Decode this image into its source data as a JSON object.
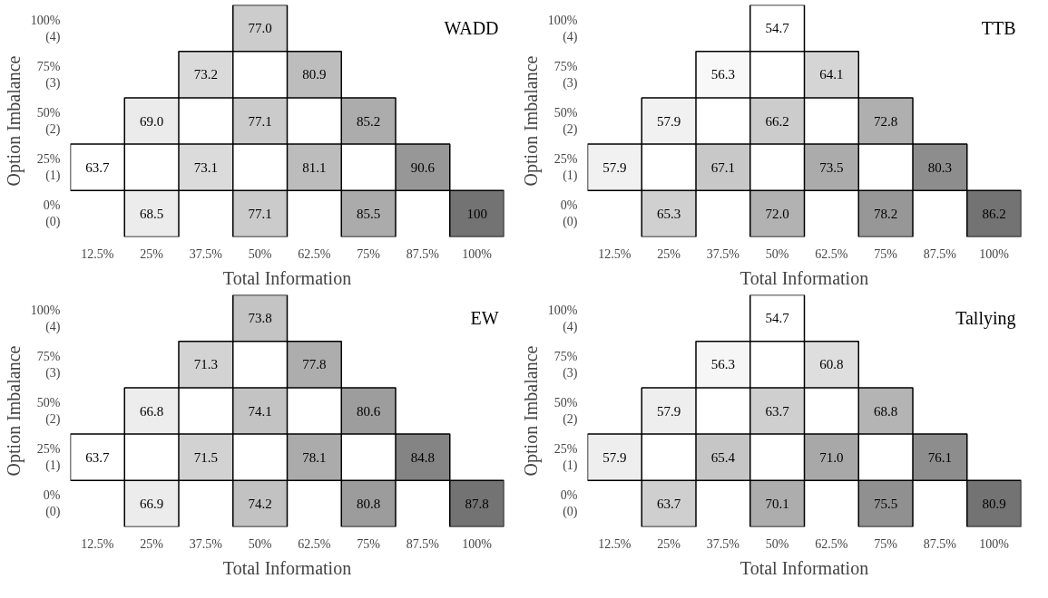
{
  "chart_data": [
    {
      "type": "heatmap",
      "title": "WADD",
      "xlabel": "Total Information",
      "ylabel": "Option Imbalance",
      "categories": [
        "12.5%",
        "25%",
        "37.5%",
        "50%",
        "62.5%",
        "75%",
        "87.5%",
        "100%"
      ],
      "y_categories": [
        "100% (4)",
        "75% (3)",
        "50% (2)",
        "25% (1)",
        "0% (0)"
      ],
      "cells": [
        [
          null,
          null,
          null,
          77.0,
          null,
          null,
          null,
          null
        ],
        [
          null,
          null,
          73.2,
          null,
          80.9,
          null,
          null,
          null
        ],
        [
          null,
          69.0,
          null,
          77.1,
          null,
          85.2,
          null,
          null
        ],
        [
          63.7,
          null,
          73.1,
          null,
          81.1,
          null,
          90.6,
          null
        ],
        [
          null,
          68.5,
          null,
          77.1,
          null,
          85.5,
          null,
          100
        ]
      ],
      "data_labels": true,
      "cell_labels": [
        [
          null,
          null,
          null,
          "77.0",
          null,
          null,
          null,
          null
        ],
        [
          null,
          null,
          "73.2",
          null,
          "80.9",
          null,
          null,
          null
        ],
        [
          null,
          "69.0",
          null,
          "77.1",
          null,
          "85.2",
          null,
          null
        ],
        [
          "63.7",
          null,
          "73.1",
          null,
          "81.1",
          null,
          "90.6",
          null
        ],
        [
          null,
          "68.5",
          null,
          "77.1",
          null,
          "85.5",
          null,
          "100"
        ]
      ]
    },
    {
      "type": "heatmap",
      "title": "TTB",
      "xlabel": "Total Information",
      "ylabel": "Option Imbalance",
      "categories": [
        "12.5%",
        "25%",
        "37.5%",
        "50%",
        "62.5%",
        "75%",
        "87.5%",
        "100%"
      ],
      "y_categories": [
        "100% (4)",
        "75% (3)",
        "50% (2)",
        "25% (1)",
        "0% (0)"
      ],
      "cells": [
        [
          null,
          null,
          null,
          54.7,
          null,
          null,
          null,
          null
        ],
        [
          null,
          null,
          56.3,
          null,
          64.1,
          null,
          null,
          null
        ],
        [
          null,
          57.9,
          null,
          66.2,
          null,
          72.8,
          null,
          null
        ],
        [
          57.9,
          null,
          67.1,
          null,
          73.5,
          null,
          80.3,
          null
        ],
        [
          null,
          65.3,
          null,
          72.0,
          null,
          78.2,
          null,
          86.2
        ]
      ],
      "data_labels": true,
      "cell_labels": [
        [
          null,
          null,
          null,
          "54.7",
          null,
          null,
          null,
          null
        ],
        [
          null,
          null,
          "56.3",
          null,
          "64.1",
          null,
          null,
          null
        ],
        [
          null,
          "57.9",
          null,
          "66.2",
          null,
          "72.8",
          null,
          null
        ],
        [
          "57.9",
          null,
          "67.1",
          null,
          "73.5",
          null,
          "80.3",
          null
        ],
        [
          null,
          "65.3",
          null,
          "72.0",
          null,
          "78.2",
          null,
          "86.2"
        ]
      ]
    },
    {
      "type": "heatmap",
      "title": "EW",
      "xlabel": "Total Information",
      "ylabel": "Option Imbalance",
      "categories": [
        "12.5%",
        "25%",
        "37.5%",
        "50%",
        "62.5%",
        "75%",
        "87.5%",
        "100%"
      ],
      "y_categories": [
        "100% (4)",
        "75% (3)",
        "50% (2)",
        "25% (1)",
        "0% (0)"
      ],
      "cells": [
        [
          null,
          null,
          null,
          73.8,
          null,
          null,
          null,
          null
        ],
        [
          null,
          null,
          71.3,
          null,
          77.8,
          null,
          null,
          null
        ],
        [
          null,
          66.8,
          null,
          74.1,
          null,
          80.6,
          null,
          null
        ],
        [
          63.7,
          null,
          71.5,
          null,
          78.1,
          null,
          84.8,
          null
        ],
        [
          null,
          66.9,
          null,
          74.2,
          null,
          80.8,
          null,
          87.8
        ]
      ],
      "data_labels": true,
      "cell_labels": [
        [
          null,
          null,
          null,
          "73.8",
          null,
          null,
          null,
          null
        ],
        [
          null,
          null,
          "71.3",
          null,
          "77.8",
          null,
          null,
          null
        ],
        [
          null,
          "66.8",
          null,
          "74.1",
          null,
          "80.6",
          null,
          null
        ],
        [
          "63.7",
          null,
          "71.5",
          null,
          "78.1",
          null,
          "84.8",
          null
        ],
        [
          null,
          "66.9",
          null,
          "74.2",
          null,
          "80.8",
          null,
          "87.8"
        ]
      ]
    },
    {
      "type": "heatmap",
      "title": "Tallying",
      "xlabel": "Total Information",
      "ylabel": "Option Imbalance",
      "categories": [
        "12.5%",
        "25%",
        "37.5%",
        "50%",
        "62.5%",
        "75%",
        "87.5%",
        "100%"
      ],
      "y_categories": [
        "100% (4)",
        "75% (3)",
        "50% (2)",
        "25% (1)",
        "0% (0)"
      ],
      "cells": [
        [
          null,
          null,
          null,
          54.7,
          null,
          null,
          null,
          null
        ],
        [
          null,
          null,
          56.3,
          null,
          60.8,
          null,
          null,
          null
        ],
        [
          null,
          57.9,
          null,
          63.7,
          null,
          68.8,
          null,
          null
        ],
        [
          57.9,
          null,
          65.4,
          null,
          71.0,
          null,
          76.1,
          null
        ],
        [
          null,
          63.7,
          null,
          70.1,
          null,
          75.5,
          null,
          80.9
        ]
      ],
      "data_labels": true,
      "cell_labels": [
        [
          null,
          null,
          null,
          "54.7",
          null,
          null,
          null,
          null
        ],
        [
          null,
          null,
          "56.3",
          null,
          "60.8",
          null,
          null,
          null
        ],
        [
          null,
          "57.9",
          null,
          "63.7",
          null,
          "68.8",
          null,
          null
        ],
        [
          "57.9",
          null,
          "65.4",
          null,
          "71.0",
          null,
          "76.1",
          null
        ],
        [
          null,
          "63.7",
          null,
          "70.1",
          null,
          "75.5",
          null,
          "80.9"
        ]
      ]
    }
  ]
}
